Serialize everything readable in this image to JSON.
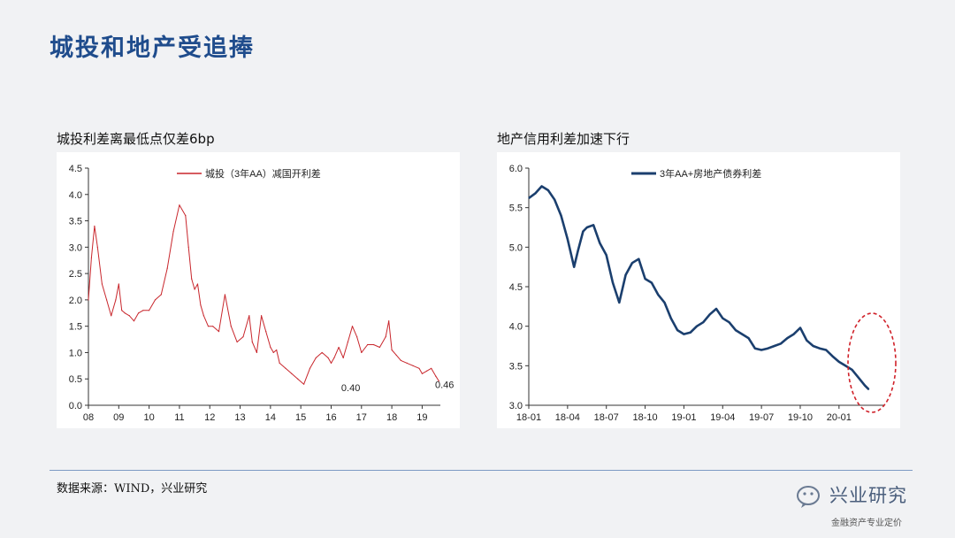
{
  "page": {
    "title": "城投和地产受追捧"
  },
  "footer": {
    "source": "数据来源：WIND，兴业研究",
    "brand_name": "兴业研究",
    "brand_tagline": "金融资产专业定价"
  },
  "charts": {
    "left_subtitle": "城投利差离最低点仅差6bp",
    "right_subtitle": "地产信用利差加速下行"
  },
  "colors": {
    "left_series": "#c8262c",
    "right_series": "#1b3f6e",
    "highlight": "#d0222a",
    "title": "#1f4c8c"
  },
  "chart_data": [
    {
      "type": "line",
      "subtitle": "城投利差离最低点仅差6bp",
      "legend_position": "top-center",
      "ylim": [
        0,
        4.5
      ],
      "yticks": [
        "0.0",
        "0.5",
        "1.0",
        "1.5",
        "2.0",
        "2.5",
        "3.0",
        "3.5",
        "4.0",
        "4.5"
      ],
      "xticks": [
        "08",
        "09",
        "10",
        "11",
        "12",
        "13",
        "14",
        "15",
        "16",
        "17",
        "18",
        "19"
      ],
      "xlim": [
        2008.0,
        2019.6
      ],
      "grid": false,
      "series": [
        {
          "name": "城投（3年AA）减国开利差",
          "x": [
            2008.0,
            2008.1,
            2008.2,
            2008.3,
            2008.45,
            2008.6,
            2008.75,
            2008.9,
            2009.0,
            2009.1,
            2009.2,
            2009.35,
            2009.5,
            2009.65,
            2009.8,
            2010.0,
            2010.2,
            2010.4,
            2010.6,
            2010.8,
            2011.0,
            2011.2,
            2011.3,
            2011.4,
            2011.5,
            2011.6,
            2011.7,
            2011.8,
            2011.95,
            2012.1,
            2012.3,
            2012.5,
            2012.7,
            2012.9,
            2013.1,
            2013.3,
            2013.4,
            2013.55,
            2013.7,
            2013.85,
            2014.0,
            2014.1,
            2014.2,
            2014.3,
            2014.5,
            2014.7,
            2014.9,
            2015.1,
            2015.3,
            2015.5,
            2015.7,
            2015.9,
            2016.0,
            2016.1,
            2016.25,
            2016.4,
            2016.55,
            2016.7,
            2016.85,
            2017.0,
            2017.2,
            2017.4,
            2017.6,
            2017.8,
            2017.9,
            2018.0,
            2018.15,
            2018.3,
            2018.5,
            2018.7,
            2018.9,
            2019.0,
            2019.15,
            2019.3,
            2019.45,
            2019.55
          ],
          "values": [
            2.0,
            2.8,
            3.4,
            3.0,
            2.3,
            2.0,
            1.7,
            2.0,
            2.3,
            1.8,
            1.75,
            1.7,
            1.6,
            1.75,
            1.8,
            1.8,
            2.0,
            2.1,
            2.6,
            3.3,
            3.8,
            3.6,
            3.0,
            2.4,
            2.2,
            2.3,
            1.9,
            1.7,
            1.5,
            1.5,
            1.4,
            2.1,
            1.5,
            1.2,
            1.3,
            1.7,
            1.2,
            1.0,
            1.7,
            1.4,
            1.1,
            1.0,
            1.05,
            0.8,
            0.7,
            0.6,
            0.5,
            0.4,
            0.7,
            0.9,
            1.0,
            0.9,
            0.8,
            0.9,
            1.1,
            0.9,
            1.2,
            1.5,
            1.3,
            1.0,
            1.15,
            1.15,
            1.1,
            1.3,
            1.6,
            1.05,
            0.95,
            0.85,
            0.8,
            0.75,
            0.7,
            0.6,
            0.65,
            0.7,
            0.55,
            0.46
          ]
        }
      ],
      "annotations": [
        {
          "text": "0.40",
          "x": 2016.1,
          "y": 0.4
        },
        {
          "text": "0.46",
          "x": 2019.6,
          "y": 0.46
        }
      ]
    },
    {
      "type": "line",
      "subtitle": "地产信用利差加速下行",
      "legend_position": "top-center",
      "ylim": [
        3.0,
        6.0
      ],
      "yticks": [
        "3.0",
        "3.5",
        "4.0",
        "4.5",
        "5.0",
        "5.5",
        "6.0"
      ],
      "xticks": [
        "18-01",
        "18-04",
        "18-07",
        "18-10",
        "19-01",
        "19-04",
        "19-07",
        "19-10",
        "20-01"
      ],
      "xlim": [
        0,
        27.5
      ],
      "grid": false,
      "series": [
        {
          "name": "3年AA+房地产债券利差",
          "x": [
            0,
            0.5,
            1,
            1.5,
            2,
            2.5,
            3,
            3.5,
            3.8,
            4.2,
            4.5,
            5,
            5.5,
            6,
            6.5,
            7,
            7.5,
            8,
            8.5,
            9,
            9.5,
            10,
            10.5,
            11,
            11.5,
            12,
            12.5,
            13,
            13.5,
            14,
            14.5,
            15,
            15.5,
            16,
            16.5,
            17,
            17.5,
            18,
            18.5,
            19,
            19.5,
            20,
            20.5,
            21,
            21.5,
            22,
            22.5,
            23,
            23.5,
            24,
            24.5,
            25,
            25.5,
            26,
            26.3
          ],
          "values": [
            5.62,
            5.68,
            5.77,
            5.72,
            5.6,
            5.4,
            5.1,
            4.75,
            4.95,
            5.2,
            5.25,
            5.28,
            5.05,
            4.9,
            4.55,
            4.3,
            4.65,
            4.8,
            4.85,
            4.6,
            4.55,
            4.4,
            4.3,
            4.1,
            3.95,
            3.9,
            3.92,
            4.0,
            4.05,
            4.15,
            4.22,
            4.1,
            4.05,
            3.95,
            3.9,
            3.85,
            3.72,
            3.7,
            3.72,
            3.75,
            3.78,
            3.85,
            3.9,
            3.98,
            3.82,
            3.75,
            3.72,
            3.7,
            3.62,
            3.55,
            3.5,
            3.45,
            3.35,
            3.25,
            3.2
          ]
        }
      ],
      "highlight": {
        "shape": "ellipse",
        "style": "dashed"
      }
    }
  ]
}
